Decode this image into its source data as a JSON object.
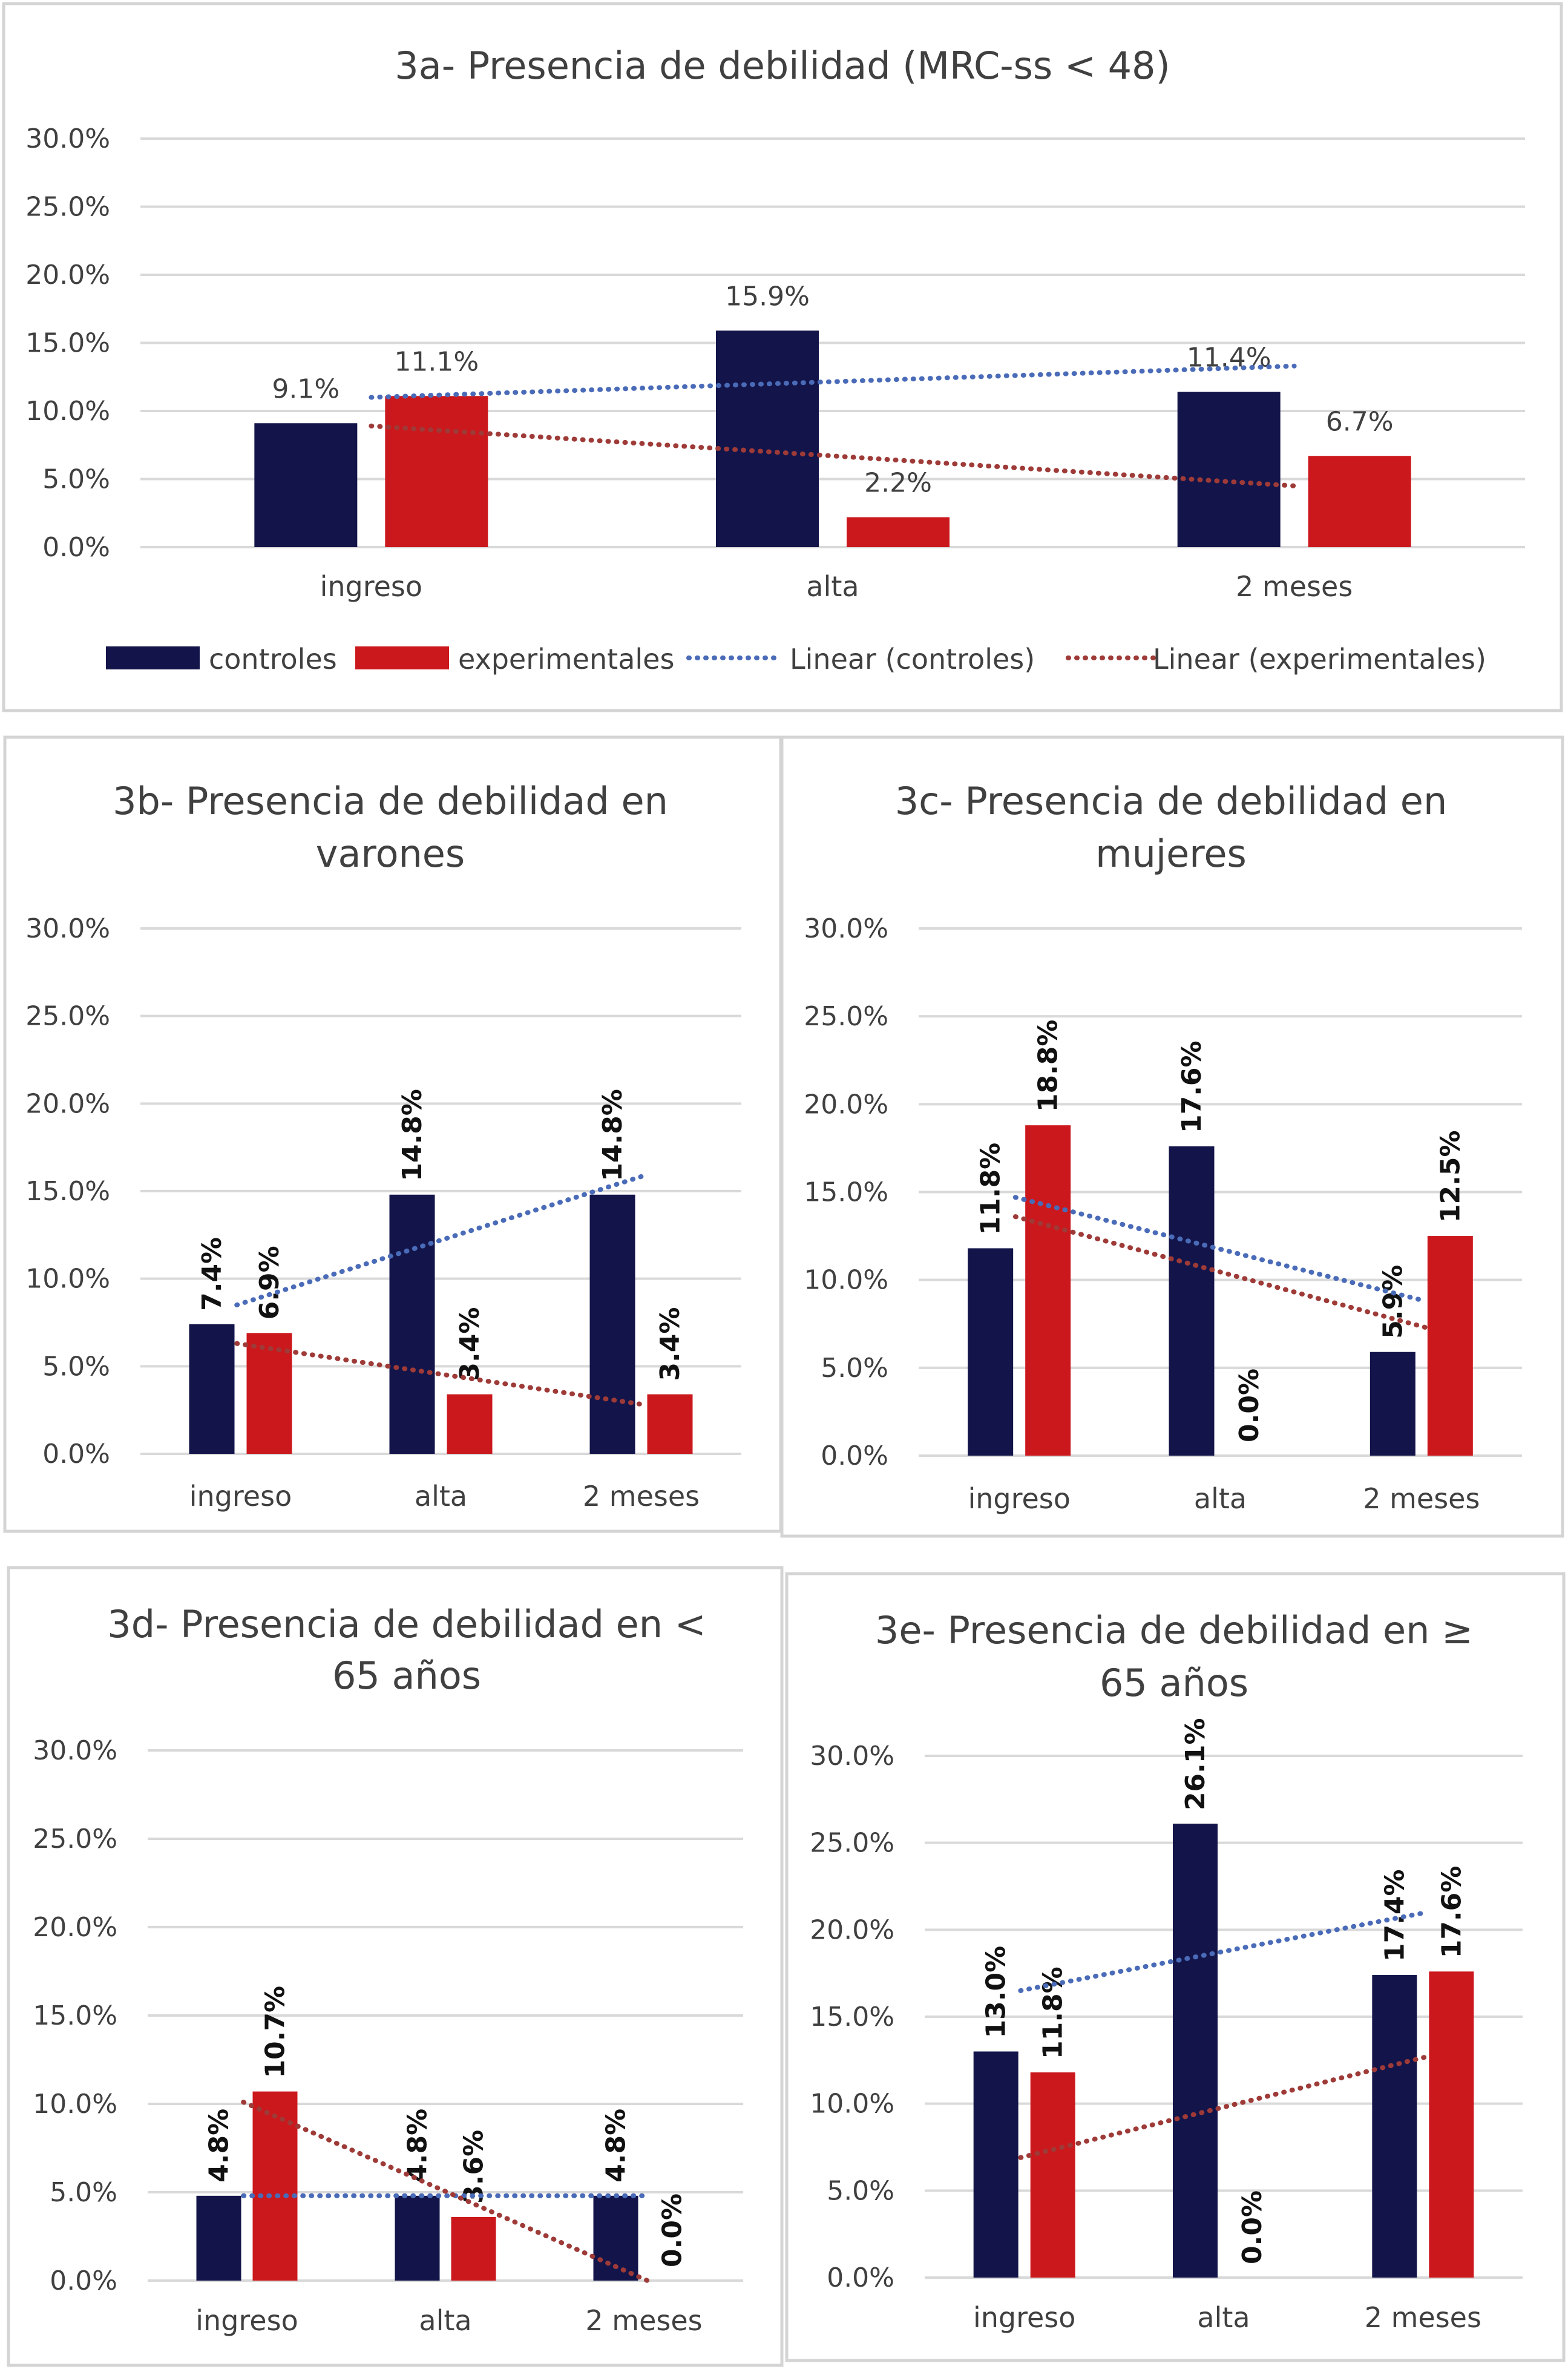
{
  "colors": {
    "controles": "#13154a",
    "experimentales": "#cb181d",
    "trend_controles": "#4a6bb8",
    "trend_experimentales": "#9e3a37"
  },
  "legend": {
    "items": [
      {
        "label": "controles",
        "type": "bar",
        "series": "controles"
      },
      {
        "label": "experimentales",
        "type": "bar",
        "series": "experimentales"
      },
      {
        "label": "Linear (controles)",
        "type": "dotted-line",
        "series": "trend_controles"
      },
      {
        "label": "Linear (experimentales)",
        "type": "dotted-line",
        "series": "trend_experimentales"
      }
    ]
  },
  "chart_data": [
    {
      "id": "3a",
      "type": "bar",
      "title": "3a- Presencia de debilidad (MRC-ss < 48)",
      "title_lines": [
        "3a- Presencia de debilidad (MRC-ss < 48)"
      ],
      "categories": [
        "ingreso",
        "alta",
        "2 meses"
      ],
      "series": [
        {
          "name": "controles",
          "values": [
            9.1,
            15.9,
            11.4
          ],
          "labels": [
            "9.1%",
            "15.9%",
            "11.4%"
          ]
        },
        {
          "name": "experimentales",
          "values": [
            11.1,
            2.2,
            6.7
          ],
          "labels": [
            "11.1%",
            "2.2%",
            "6.7%"
          ]
        }
      ],
      "trendlines": [
        {
          "name": "Linear (controles)",
          "start": 11.0,
          "end": 13.3
        },
        {
          "name": "Linear (experimentales)",
          "start": 8.9,
          "end": 4.5
        }
      ],
      "ylim": [
        0,
        30
      ],
      "yticks": [
        "0.0%",
        "5.0%",
        "10.0%",
        "15.0%",
        "20.0%",
        "25.0%",
        "30.0%"
      ],
      "label_style": "horizontal",
      "grid": true,
      "legend": "bottom"
    },
    {
      "id": "3b",
      "type": "bar",
      "title": "3b- Presencia de debilidad en varones",
      "title_lines": [
        "3b- Presencia de debilidad en",
        "varones"
      ],
      "categories": [
        "ingreso",
        "alta",
        "2 meses"
      ],
      "series": [
        {
          "name": "controles",
          "values": [
            7.4,
            14.8,
            14.8
          ],
          "labels": [
            "7.4%",
            "14.8%",
            "14.8%"
          ]
        },
        {
          "name": "experimentales",
          "values": [
            6.9,
            3.4,
            3.4
          ],
          "labels": [
            "6.9%",
            "3.4%",
            "3.4%"
          ]
        }
      ],
      "trendlines": [
        {
          "name": "Linear (controles)",
          "start": 8.5,
          "end": 15.9
        },
        {
          "name": "Linear (experimentales)",
          "start": 6.3,
          "end": 2.8
        }
      ],
      "ylim": [
        0,
        30
      ],
      "yticks": [
        "0.0%",
        "5.0%",
        "10.0%",
        "15.0%",
        "20.0%",
        "25.0%",
        "30.0%"
      ],
      "label_style": "rotated",
      "grid": true
    },
    {
      "id": "3c",
      "type": "bar",
      "title": "3c- Presencia de debilidad en mujeres",
      "title_lines": [
        "3c- Presencia de debilidad en",
        "mujeres"
      ],
      "categories": [
        "ingreso",
        "alta",
        "2 meses"
      ],
      "series": [
        {
          "name": "controles",
          "values": [
            11.8,
            17.6,
            5.9
          ],
          "labels": [
            "11.8%",
            "17.6%",
            "5.9%"
          ]
        },
        {
          "name": "experimentales",
          "values": [
            18.8,
            0.0,
            12.5
          ],
          "labels": [
            "18.8%",
            "0.0%",
            "12.5%"
          ]
        }
      ],
      "trendlines": [
        {
          "name": "Linear (controles)",
          "start": 14.7,
          "end": 8.8
        },
        {
          "name": "Linear (experimentales)",
          "start": 13.6,
          "end": 7.3
        }
      ],
      "ylim": [
        0,
        30
      ],
      "yticks": [
        "0.0%",
        "5.0%",
        "10.0%",
        "15.0%",
        "20.0%",
        "25.0%",
        "30.0%"
      ],
      "label_style": "rotated",
      "grid": true
    },
    {
      "id": "3d",
      "type": "bar",
      "title": "3d- Presencia de debilidad en < 65 años",
      "title_lines": [
        "3d- Presencia de debilidad en <",
        "65 años"
      ],
      "categories": [
        "ingreso",
        "alta",
        "2 meses"
      ],
      "series": [
        {
          "name": "controles",
          "values": [
            4.8,
            4.8,
            4.8
          ],
          "labels": [
            "4.8%",
            "4.8%",
            "4.8%"
          ]
        },
        {
          "name": "experimentales",
          "values": [
            10.7,
            3.6,
            0.0
          ],
          "labels": [
            "10.7%",
            "3.6%",
            "0.0%"
          ]
        }
      ],
      "trendlines": [
        {
          "name": "Linear (controles)",
          "start": 4.8,
          "end": 4.8
        },
        {
          "name": "Linear (experimentales)",
          "start": 10.1,
          "end": 0.0
        }
      ],
      "ylim": [
        0,
        30
      ],
      "yticks": [
        "0.0%",
        "5.0%",
        "10.0%",
        "15.0%",
        "20.0%",
        "25.0%",
        "30.0%"
      ],
      "label_style": "rotated",
      "grid": true
    },
    {
      "id": "3e",
      "type": "bar",
      "title": "3e- Presencia de debilidad en ≥ 65 años",
      "title_lines": [
        "3e- Presencia de debilidad en ≥",
        "65 años"
      ],
      "categories": [
        "ingreso",
        "alta",
        "2 meses"
      ],
      "series": [
        {
          "name": "controles",
          "values": [
            13.0,
            26.1,
            17.4
          ],
          "labels": [
            "13.0%",
            "26.1%",
            "17.4%"
          ]
        },
        {
          "name": "experimentales",
          "values": [
            11.8,
            0.0,
            17.6
          ],
          "labels": [
            "11.8%",
            "0.0%",
            "17.6%"
          ]
        }
      ],
      "trendlines": [
        {
          "name": "Linear (controles)",
          "start": 16.5,
          "end": 21.0
        },
        {
          "name": "Linear (experimentales)",
          "start": 6.9,
          "end": 12.7
        }
      ],
      "ylim": [
        0,
        30
      ],
      "yticks": [
        "0.0%",
        "5.0%",
        "10.0%",
        "15.0%",
        "20.0%",
        "25.0%",
        "30.0%"
      ],
      "label_style": "rotated",
      "grid": true
    }
  ]
}
